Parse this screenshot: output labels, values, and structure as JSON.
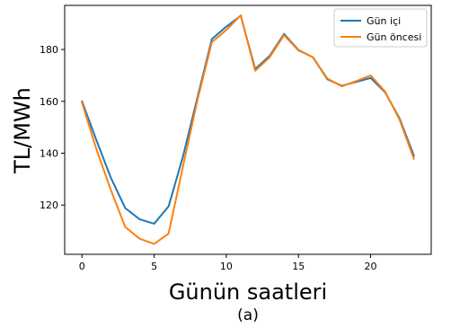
{
  "chart_data": {
    "type": "line",
    "xlabel": "Günün saatleri",
    "ylabel": "TL/MWh",
    "caption": "(a)",
    "xlim": [
      -1.2,
      24.2
    ],
    "ylim": [
      101,
      197
    ],
    "xticks": [
      0,
      5,
      10,
      15,
      20
    ],
    "yticks": [
      120,
      140,
      160,
      180
    ],
    "grid": false,
    "legend_position": "top-right",
    "x": [
      0,
      1,
      2,
      3,
      4,
      5,
      6,
      7,
      8,
      9,
      10,
      11,
      12,
      13,
      14,
      15,
      16,
      17,
      18,
      19,
      20,
      21,
      22,
      23
    ],
    "series": [
      {
        "name": "Gün içi",
        "color": "#1f77b4",
        "values": [
          160.0,
          145.0,
          130.5,
          118.8,
          114.5,
          112.8,
          119.5,
          138.8,
          161.5,
          184.0,
          188.8,
          193.0,
          172.5,
          177.5,
          186.0,
          179.8,
          177.0,
          168.5,
          166.0,
          167.5,
          169.0,
          163.5,
          153.5,
          139.0
        ]
      },
      {
        "name": "Gün öncesi",
        "color": "#ff7f0e",
        "values": [
          159.5,
          141.5,
          125.8,
          111.5,
          107.0,
          105.0,
          109.0,
          135.0,
          160.5,
          182.8,
          187.5,
          193.2,
          171.8,
          177.0,
          185.5,
          179.6,
          177.0,
          168.8,
          165.8,
          167.8,
          170.0,
          163.8,
          153.0,
          137.8
        ]
      }
    ]
  }
}
